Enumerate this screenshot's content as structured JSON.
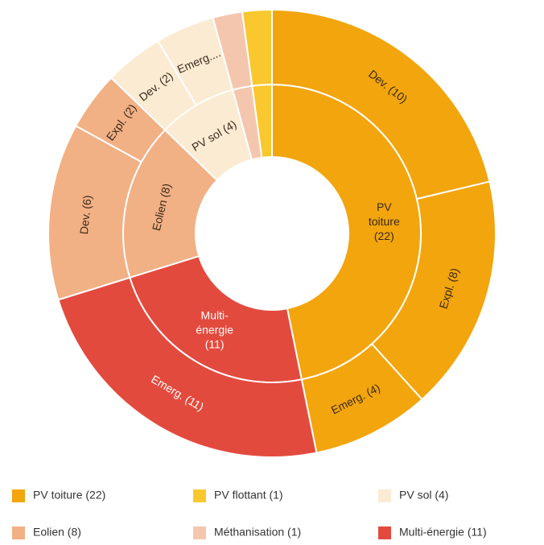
{
  "chart_data": {
    "type": "sunburst",
    "series": [
      {
        "label": "PV toiture (22)",
        "value": 22,
        "color": "#f2a50c",
        "children": [
          {
            "label": "Dev. (10)",
            "value": 10
          },
          {
            "label": "Expl. (8)",
            "value": 8
          },
          {
            "label": "Emerg. (4)",
            "value": 4
          }
        ]
      },
      {
        "label": "Multi-énergie (11)",
        "value": 11,
        "color": "#e34a3e",
        "children": [
          {
            "label": "Emerg. (11)",
            "value": 11
          }
        ]
      },
      {
        "label": "Eolien (8)",
        "value": 8,
        "color": "#f2b085",
        "children": [
          {
            "label": "Dev. (6)",
            "value": 6
          },
          {
            "label": "Expl. (2)",
            "value": 2
          }
        ]
      },
      {
        "label": "PV sol (4)",
        "value": 4,
        "color": "#fbebd3",
        "children": [
          {
            "label": "Dev. (2)",
            "value": 2
          },
          {
            "label": "Emerg....",
            "value": 2
          }
        ]
      },
      {
        "label": "Méthanisation (1)",
        "value": 1,
        "color": "#f5c6ae",
        "children": [
          {
            "label": null,
            "value": 1
          }
        ]
      },
      {
        "label": "PV flottant (1)",
        "value": 1,
        "color": "#f9c82e",
        "children": [
          {
            "label": null,
            "value": 1
          }
        ]
      }
    ],
    "legend_order": [
      0,
      5,
      3,
      2,
      4,
      1
    ]
  }
}
